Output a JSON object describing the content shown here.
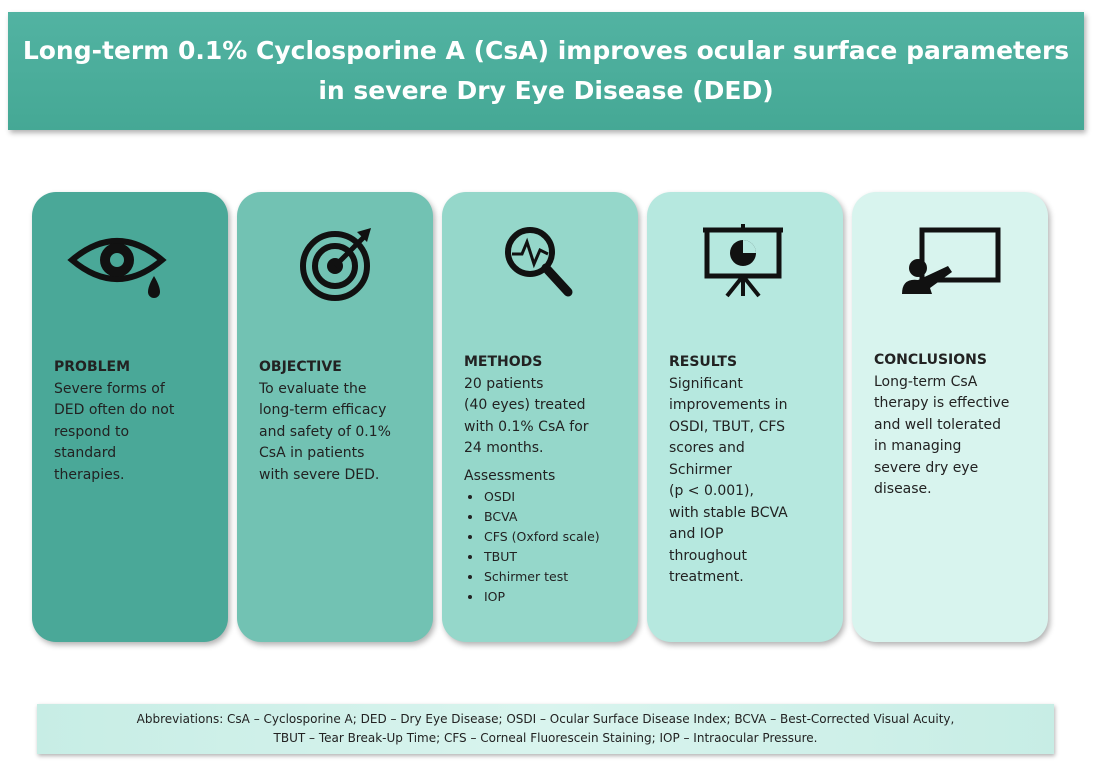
{
  "header": {
    "title_lines": [
      "Long-term 0.1% Cyclosporine A (CsA) improves ocular surface parameters",
      "in severe Dry Eye Disease (DED)"
    ]
  },
  "cards": [
    {
      "heading": "PROBLEM",
      "lines": [
        "Severe forms of",
        "DED often do not",
        "respond to",
        "standard",
        "therapies."
      ]
    },
    {
      "heading": "OBJECTIVE",
      "lines": [
        "To evaluate the",
        "long-term efficacy",
        "and safety of 0.1%",
        "CsA in patients",
        "with severe DED."
      ]
    },
    {
      "heading": "METHODS",
      "lines": [
        "20 patients",
        "(40 eyes) treated",
        "with 0.1% CsA for",
        "24 months."
      ],
      "subheading": "Assessments",
      "items": [
        "OSDI",
        "BCVA",
        "CFS (Oxford scale)",
        "TBUT",
        "Schirmer test",
        "IOP"
      ]
    },
    {
      "heading": "RESULTS",
      "lines": [
        "Significant",
        "improvements in",
        "OSDI, TBUT, CFS",
        "scores and",
        "Schirmer",
        "(p < 0.001),",
        "with stable BCVA",
        "and IOP",
        "throughout",
        "treatment."
      ]
    },
    {
      "heading": "CONCLUSIONS",
      "lines": [
        "Long-term CsA",
        "therapy is effective",
        "and well tolerated",
        "in managing",
        "severe dry eye",
        "disease."
      ]
    }
  ],
  "footer": {
    "lines": [
      "Abbreviations: CsA – Cyclosporine A; DED – Dry Eye Disease; OSDI – Ocular Surface Disease Index; BCVA – Best-Corrected Visual Acuity,",
      "TBUT – Tear Break-Up Time; CFS – Corneal Fluorescein Staining; IOP – Intraocular Pressure."
    ]
  }
}
